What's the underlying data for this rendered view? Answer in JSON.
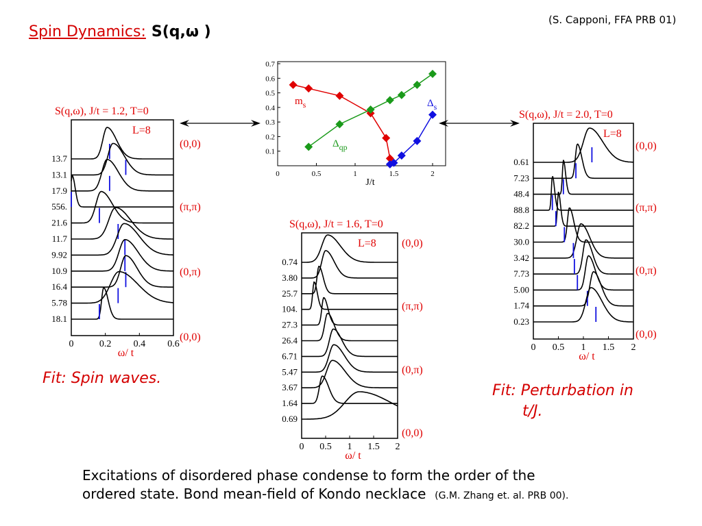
{
  "header": {
    "title_prefix": "Spin Dynamics:",
    "title_formula": "S(q,ω )",
    "citation": "(S. Capponi, FFA PRB 01)"
  },
  "fits": {
    "left": "Fit: Spin waves.",
    "right_line1": "Fit: Perturbation in",
    "right_line2": "t/J."
  },
  "footer": {
    "line1": "Excitations of disordered phase condense to form the order of the",
    "line2": "ordered state.  Bond  mean-field of Kondo necklace",
    "ref": "(G.M. Zhang et. al. PRB 00)."
  },
  "colors": {
    "red": "#e00000",
    "green": "#1a9a1a",
    "blue": "#1010e0",
    "title_red": "#d40000"
  },
  "chart_data": [
    {
      "type": "line",
      "xlabel": "J/t",
      "ylabel": "",
      "xlim": [
        0,
        2.2
      ],
      "ylim": [
        0,
        0.7
      ],
      "xticks": [
        "0",
        "0.5",
        "1",
        "1.5",
        "2"
      ],
      "yticks": [
        "0.1",
        "0.2",
        "0.3",
        "0.4",
        "0.5",
        "0.6",
        "0.7"
      ],
      "grid": false,
      "series": [
        {
          "name": "m_s",
          "label_main": "m",
          "label_sub": "s",
          "color": "#e00000",
          "x": [
            0.2,
            0.4,
            0.8,
            1.2,
            1.4,
            1.45
          ],
          "y": [
            0.555,
            0.53,
            0.48,
            0.36,
            0.19,
            0.05
          ]
        },
        {
          "name": "Δ_qp",
          "label_main": "Δ",
          "label_sub": "qp",
          "color": "#1a9a1a",
          "x": [
            0.4,
            0.8,
            1.2,
            1.45,
            1.6,
            1.8,
            2.0
          ],
          "y": [
            0.13,
            0.285,
            0.385,
            0.45,
            0.485,
            0.555,
            0.63
          ]
        },
        {
          "name": "Δ_s",
          "label_main": "Δ",
          "label_sub": "s",
          "color": "#1010e0",
          "x": [
            1.45,
            1.5,
            1.6,
            1.8,
            2.0
          ],
          "y": [
            0.01,
            0.02,
            0.07,
            0.17,
            0.35
          ]
        }
      ]
    },
    {
      "type": "line",
      "title": "S(q,ω), J/t = 1.2, T=0",
      "annotation": "L=8",
      "xlabel": "ω/ t",
      "xlim": [
        0,
        0.6
      ],
      "xticks": [
        "0",
        "0.2",
        "0.4",
        "0.6"
      ],
      "q_labels": [
        "(0,0)",
        "(π,π)",
        "(0,π)",
        "(0,0)"
      ],
      "rows": [
        {
          "weight": "13.7",
          "peak": 0.21,
          "width": 0.025,
          "tick": 0.225
        },
        {
          "weight": "13.1",
          "peak": 0.245,
          "width": 0.03,
          "tick": 0.32
        },
        {
          "weight": "17.9",
          "peak": 0.21,
          "width": 0.03,
          "tick": 0.225
        },
        {
          "weight": "556.",
          "peak": 0.005,
          "width": 0.008,
          "tick": 0.0
        },
        {
          "weight": "21.6",
          "peak": 0.175,
          "width": 0.03,
          "tick": 0.165
        },
        {
          "weight": "11.7",
          "peak": 0.26,
          "width": 0.04,
          "tick": 0.275
        },
        {
          "weight": "9.92",
          "peak": 0.31,
          "width": 0.04,
          "tick": 0.315
        },
        {
          "weight": "10.9",
          "peak": 0.315,
          "width": 0.035,
          "tick": 0.315
        },
        {
          "weight": "16.4",
          "peak": 0.32,
          "width": 0.03,
          "tick": 0.32
        },
        {
          "weight": "5.78",
          "peak": 0.28,
          "width": 0.05,
          "tick": 0.275
        },
        {
          "weight": "18.1",
          "peak": 0.19,
          "width": 0.012,
          "tick": 0.165
        }
      ]
    },
    {
      "type": "line",
      "title": "S(q,ω), J/t = 1.6, T=0",
      "annotation": "L=8",
      "xlabel": "ω/ t",
      "xlim": [
        0,
        2
      ],
      "xticks": [
        "0",
        "0.5",
        "1",
        "1.5",
        "2"
      ],
      "q_labels": [
        "(0,0)",
        "(π,π)",
        "(0,π)",
        "(0,0)"
      ],
      "rows": [
        {
          "weight": "0.74",
          "peak": 0.54,
          "width": 0.12,
          "tick": null
        },
        {
          "weight": "3.80",
          "peak": 0.5,
          "width": 0.08,
          "tick": null
        },
        {
          "weight": "25.7",
          "peak": 0.36,
          "width": 0.04,
          "tick": null
        },
        {
          "weight": "104.",
          "peak": 0.26,
          "width": 0.03,
          "tick": null
        },
        {
          "weight": "27.3",
          "peak": 0.46,
          "width": 0.04,
          "tick": null
        },
        {
          "weight": "26.4",
          "peak": 0.54,
          "width": 0.06,
          "tick": null
        },
        {
          "weight": "6.71",
          "peak": 0.66,
          "width": 0.08,
          "tick": null
        },
        {
          "weight": "5.47",
          "peak": 0.67,
          "width": 0.1,
          "tick": null
        },
        {
          "weight": "3.67",
          "peak": 0.64,
          "width": 0.12,
          "tick": null
        },
        {
          "weight": "1.64",
          "peak": 0.43,
          "width": 0.06,
          "tick": null
        },
        {
          "weight": "0.69",
          "peak": 1.2,
          "width": 0.3,
          "tick": null
        }
      ]
    },
    {
      "type": "line",
      "title": "S(q,ω), J/t = 2.0, T=0",
      "annotation": "L=8",
      "xlabel": "ω/ t",
      "xlim": [
        0,
        2
      ],
      "xticks": [
        "0",
        "0.5",
        "1",
        "1.5",
        "2"
      ],
      "q_labels": [
        "(0,0)",
        "(π,π)",
        "(0,π)",
        "(0,0)"
      ],
      "rows": [
        {
          "weight": "0.61",
          "peak": 1.12,
          "width": 0.12,
          "tick": 1.17
        },
        {
          "weight": "7.23",
          "peak": 0.88,
          "width": 0.04,
          "tick": 0.85
        },
        {
          "weight": "48.4",
          "peak": 0.6,
          "width": 0.02,
          "tick": 0.6
        },
        {
          "weight": "88.8",
          "peak": 0.38,
          "width": 0.02,
          "tick": 0.38
        },
        {
          "weight": "82.2",
          "peak": 0.5,
          "width": 0.02,
          "tick": 0.45
        },
        {
          "weight": "30.0",
          "peak": 0.72,
          "width": 0.04,
          "tick": 0.62
        },
        {
          "weight": "3.42",
          "peak": 0.95,
          "width": 0.08,
          "tick": 0.8
        },
        {
          "weight": "7.73",
          "peak": 1.05,
          "width": 0.06,
          "tick": 0.82
        },
        {
          "weight": "5.00",
          "peak": 1.1,
          "width": 0.06,
          "tick": 0.88
        },
        {
          "weight": "1.74",
          "peak": 1.2,
          "width": 0.07,
          "tick": 1.08
        },
        {
          "weight": "0.23",
          "peak": 1.15,
          "width": 0.1,
          "tick": 1.25
        }
      ]
    }
  ]
}
